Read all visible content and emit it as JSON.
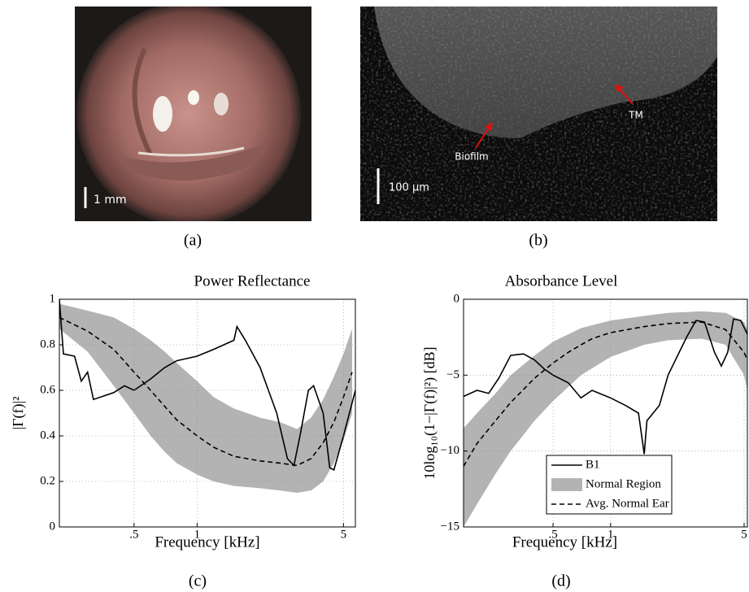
{
  "panels": {
    "a": {
      "label": "(a)",
      "scale_bar": "1 mm"
    },
    "b": {
      "label": "(b)",
      "scale_bar": "100 µm",
      "annotations": [
        "Biofilm",
        "TM"
      ]
    }
  },
  "chart_data": [
    {
      "type": "line",
      "title": "Power Reflectance",
      "panel_label": "(c)",
      "xlabel": "Frequency [kHz]",
      "ylabel": "|Γ(f)|²",
      "xscale": "log",
      "xlim": [
        0.22,
        5.7
      ],
      "ylim": [
        0,
        1
      ],
      "grid": true,
      "legend": false,
      "xticks": [
        {
          "value": 0.5,
          "label": ".5"
        },
        1,
        5
      ],
      "yticks": [
        0,
        0.2,
        0.4,
        0.6,
        0.8,
        1
      ],
      "series": [
        {
          "style": "band",
          "color": "#b3b3b3",
          "x": [
            0.22,
            0.3,
            0.4,
            0.5,
            0.6,
            0.7,
            0.8,
            1,
            1.2,
            1.5,
            2,
            2.5,
            3,
            3.5,
            4,
            4.5,
            5,
            5.5
          ],
          "upper": [
            0.98,
            0.95,
            0.92,
            0.87,
            0.82,
            0.77,
            0.72,
            0.64,
            0.57,
            0.52,
            0.48,
            0.46,
            0.43,
            0.48,
            0.56,
            0.66,
            0.76,
            0.87
          ],
          "lower": [
            0.87,
            0.77,
            0.62,
            0.5,
            0.4,
            0.33,
            0.28,
            0.23,
            0.2,
            0.18,
            0.17,
            0.16,
            0.15,
            0.16,
            0.2,
            0.28,
            0.38,
            0.5
          ]
        },
        {
          "style": "dashed",
          "color": "#000000",
          "x": [
            0.22,
            0.3,
            0.4,
            0.5,
            0.6,
            0.7,
            0.8,
            1,
            1.2,
            1.5,
            2,
            2.5,
            3,
            3.5,
            4,
            4.5,
            5,
            5.5
          ],
          "values": [
            0.92,
            0.86,
            0.78,
            0.68,
            0.6,
            0.53,
            0.47,
            0.4,
            0.35,
            0.31,
            0.29,
            0.28,
            0.27,
            0.3,
            0.37,
            0.46,
            0.57,
            0.68
          ]
        },
        {
          "style": "solid",
          "color": "#000000",
          "x": [
            0.22,
            0.23,
            0.26,
            0.28,
            0.3,
            0.32,
            0.4,
            0.45,
            0.5,
            0.6,
            0.7,
            0.8,
            1,
            1.2,
            1.5,
            1.55,
            1.7,
            2,
            2.4,
            2.7,
            2.9,
            3.1,
            3.4,
            3.6,
            4,
            4.3,
            4.5,
            5,
            5.7
          ],
          "values": [
            1.0,
            0.76,
            0.75,
            0.64,
            0.68,
            0.56,
            0.59,
            0.62,
            0.6,
            0.65,
            0.7,
            0.73,
            0.75,
            0.78,
            0.82,
            0.88,
            0.82,
            0.7,
            0.5,
            0.3,
            0.27,
            0.4,
            0.6,
            0.62,
            0.5,
            0.26,
            0.25,
            0.4,
            0.6
          ]
        }
      ]
    },
    {
      "type": "line",
      "title": "Absorbance Level",
      "panel_label": "(d)",
      "xlabel": "Frequency [kHz]",
      "ylabel": "10log₁₀(1−|Γ(f)|²) [dB]",
      "xscale": "log",
      "xlim": [
        0.17,
        5.2
      ],
      "ylim": [
        -15,
        0
      ],
      "grid": true,
      "legend": "lower left",
      "xticks": [
        {
          "value": 0.5,
          "label": ".5"
        },
        1,
        5
      ],
      "yticks": [
        {
          "value": -15,
          "label": "−15"
        },
        {
          "value": -10,
          "label": "−10"
        },
        {
          "value": -5,
          "label": "−5"
        },
        0
      ],
      "series": [
        {
          "name": "Normal Region",
          "style": "band",
          "color": "#b3b3b3",
          "x": [
            0.17,
            0.2,
            0.25,
            0.3,
            0.4,
            0.5,
            0.7,
            1,
            1.5,
            2,
            3,
            4,
            5,
            5.2
          ],
          "upper": [
            -8.5,
            -7.5,
            -6.2,
            -5,
            -3.7,
            -2.8,
            -1.9,
            -1.4,
            -1.1,
            -0.9,
            -0.8,
            -0.9,
            -1.5,
            -2
          ],
          "lower": [
            -15,
            -13.5,
            -11.5,
            -10,
            -8,
            -6.7,
            -5,
            -3.8,
            -3,
            -2.7,
            -2.6,
            -3,
            -5,
            -6
          ]
        },
        {
          "name": "Avg. Normal Ear",
          "style": "dashed",
          "color": "#000000",
          "x": [
            0.17,
            0.2,
            0.25,
            0.3,
            0.4,
            0.5,
            0.6,
            0.7,
            0.8,
            1,
            1.5,
            2,
            3,
            4,
            5,
            5.2
          ],
          "values": [
            -11,
            -9.5,
            -8,
            -6.8,
            -5.2,
            -4.2,
            -3.5,
            -3,
            -2.6,
            -2.2,
            -1.8,
            -1.6,
            -1.5,
            -2,
            -3.5,
            -4
          ]
        },
        {
          "name": "B1",
          "style": "solid",
          "color": "#000000",
          "x": [
            0.17,
            0.2,
            0.23,
            0.26,
            0.3,
            0.35,
            0.4,
            0.45,
            0.5,
            0.6,
            0.7,
            0.8,
            1,
            1.2,
            1.4,
            1.5,
            1.55,
            1.8,
            2,
            2.5,
            2.8,
            3.1,
            3.5,
            3.8,
            4.1,
            4.4,
            4.8,
            5.2
          ],
          "values": [
            -6.4,
            -6,
            -6.2,
            -5.2,
            -3.7,
            -3.6,
            -4,
            -4.6,
            -5,
            -5.5,
            -6.5,
            -6,
            -6.5,
            -7,
            -7.5,
            -10.2,
            -8,
            -7,
            -5,
            -2.5,
            -1.4,
            -1.5,
            -3.5,
            -4.4,
            -3.5,
            -1.3,
            -1.4,
            -2.3
          ]
        }
      ]
    }
  ]
}
